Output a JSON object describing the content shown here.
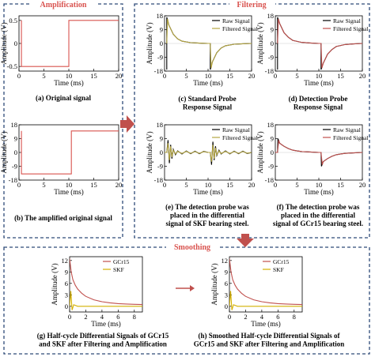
{
  "sections": {
    "amplification": "Amplification",
    "filtering": "Filtering",
    "smoothing": "Smoothing"
  },
  "colors": {
    "frame": "#2e4a78",
    "header": "#d9534f",
    "arrow": "#c0504d",
    "raw": "#000000",
    "filtered": "#b5a642",
    "gcr15": "#c0504d",
    "skf": "#d4b000",
    "original": "#d9534f"
  },
  "captions": {
    "a": [
      "(a) Original signal"
    ],
    "b": [
      "(b) The amplified original signal"
    ],
    "c": [
      "(c) Standard Probe",
      "Response Signal"
    ],
    "d": [
      "(d) Detection Probe",
      "Response Signal"
    ],
    "e": [
      "(e) The detection probe was",
      "placed in the differential",
      "signal of SKF bearing steel."
    ],
    "f": [
      "(f) The detection probe was",
      "placed in the differential",
      "signal of GCr15 bearing steel."
    ],
    "g": [
      "(g) Half-cycle Differential Signals of GCr15",
      "and SKF after Filtering and Amplification"
    ],
    "h": [
      "(h) Smoothed Half-cycle Differential Signals of",
      "GCr15 and SKF after Filtering and Amplification"
    ]
  },
  "chart_data": [
    {
      "id": "a",
      "type": "line",
      "xlabel": "Time (ms)",
      "ylabel": "Amplitude (V)",
      "xlim": [
        0,
        20
      ],
      "ylim": [
        -0.6,
        0.6
      ],
      "xticks": [
        0,
        5,
        10,
        15,
        20
      ],
      "yticks": [
        -0.5,
        0,
        0.5
      ],
      "series": [
        {
          "x": [
            0.5,
            0.5,
            10,
            10,
            20
          ],
          "y": [
            0.5,
            -0.5,
            -0.5,
            0.5,
            0.5
          ],
          "color": "#d9534f"
        }
      ]
    },
    {
      "id": "b",
      "type": "line",
      "xlabel": "Time (ms)",
      "ylabel": "Amplitude (V)",
      "xlim": [
        0,
        20
      ],
      "ylim": [
        -18,
        18
      ],
      "xticks": [
        0,
        5,
        10,
        15,
        20
      ],
      "yticks": [
        -18,
        -9,
        0,
        9,
        18
      ],
      "series": [
        {
          "x": [
            0.5,
            0.5,
            10.5,
            10.5,
            20
          ],
          "y": [
            14,
            -14,
            -14,
            14,
            14
          ],
          "color": "#d9534f"
        }
      ]
    },
    {
      "id": "c",
      "type": "line",
      "xlabel": "Time (ms)",
      "ylabel": "Amplitude (V)",
      "xlim": [
        0,
        20
      ],
      "ylim": [
        -18,
        18
      ],
      "xticks": [
        0,
        5,
        10,
        15,
        20
      ],
      "yticks": [
        -18,
        -9,
        0,
        9,
        18
      ],
      "legend": [
        "Raw Signal",
        "Filtered Signal"
      ],
      "legend_pos": "top-right",
      "series": [
        {
          "name": "Raw Signal",
          "color": "#000000",
          "x": [
            0.5,
            0.5,
            1,
            2,
            3,
            4,
            6,
            8,
            10,
            10.5,
            10.5,
            11,
            12,
            13,
            14,
            16,
            18,
            20
          ],
          "y": [
            -17,
            17,
            12,
            6,
            3,
            1.5,
            0.5,
            0.2,
            0,
            0,
            -17,
            -12,
            -6,
            -3,
            -1.5,
            -0.5,
            -0.2,
            0
          ]
        },
        {
          "name": "Filtered Signal",
          "color": "#b5a642",
          "x": [
            0.5,
            0.7,
            1,
            2,
            3,
            4,
            6,
            8,
            10,
            10.5,
            10.7,
            11,
            12,
            13,
            14,
            16,
            18,
            20
          ],
          "y": [
            0,
            16,
            12,
            6,
            3,
            1.5,
            0.5,
            0.2,
            0,
            0,
            -16,
            -12,
            -6,
            -3,
            -1.5,
            -0.5,
            -0.2,
            0
          ]
        }
      ]
    },
    {
      "id": "d",
      "type": "line",
      "xlabel": "Time (ms)",
      "ylabel": "Amplitude (V)",
      "xlim": [
        0,
        20
      ],
      "ylim": [
        -18,
        18
      ],
      "xticks": [
        0,
        5,
        10,
        15,
        20
      ],
      "yticks": [
        -18,
        -9,
        0,
        9,
        18
      ],
      "legend": [
        "Raw Signal",
        "Filtered Signal"
      ],
      "legend_pos": "top-right",
      "series": [
        {
          "name": "Raw Signal",
          "color": "#000000",
          "x": [
            0.5,
            0.5,
            1,
            2,
            3,
            4,
            6,
            8,
            10,
            10.5,
            10.5,
            11,
            12,
            13,
            14,
            16,
            18,
            20
          ],
          "y": [
            -17,
            17,
            13,
            7,
            4,
            2,
            0.7,
            0.3,
            0,
            0,
            -17,
            -13,
            -7,
            -4,
            -2,
            -0.7,
            -0.3,
            0
          ]
        },
        {
          "name": "Filtered Signal",
          "color": "#c0504d",
          "x": [
            0.5,
            0.7,
            1,
            2,
            3,
            4,
            6,
            8,
            10,
            10.5,
            10.7,
            11,
            12,
            13,
            14,
            16,
            18,
            20
          ],
          "y": [
            0,
            16,
            13,
            7,
            4,
            2,
            0.7,
            0.3,
            0,
            0,
            -16,
            -13,
            -7,
            -4,
            -2,
            -0.7,
            -0.3,
            0
          ]
        }
      ]
    },
    {
      "id": "e",
      "type": "line",
      "xlabel": "Time (ms)",
      "ylabel": "Amplitude (V)",
      "xlim": [
        0,
        20
      ],
      "ylim": [
        -18,
        18
      ],
      "xticks": [
        0,
        5,
        10,
        15,
        20
      ],
      "yticks": [
        -18,
        -9,
        0,
        9,
        18
      ],
      "legend": [
        "Raw Signal",
        "Filtered Signal"
      ],
      "legend_pos": "top-right",
      "series": [
        {
          "name": "Raw Signal",
          "color": "#000000",
          "x": [
            0,
            0.5,
            0.8,
            1.1,
            1.4,
            1.7,
            2,
            2.5,
            3,
            4,
            5,
            6,
            7,
            8,
            9,
            10,
            10.5,
            10.8,
            11.1,
            11.4,
            11.7,
            12,
            12.5,
            13,
            14,
            15,
            16,
            17,
            18,
            19,
            20
          ],
          "y": [
            0,
            0,
            8,
            -7,
            5,
            -4,
            2,
            -1.5,
            1,
            -1,
            1,
            -0.8,
            0.8,
            -0.8,
            0.7,
            0,
            0,
            -8,
            7,
            -5,
            4,
            -2,
            1.5,
            -1,
            1,
            -1,
            0.8,
            -0.8,
            0.8,
            -0.7,
            0
          ]
        },
        {
          "name": "Filtered Signal",
          "color": "#b5a642",
          "x": [
            0,
            0.5,
            0.8,
            1.1,
            1.4,
            1.7,
            2,
            2.5,
            3,
            4,
            5,
            6,
            7,
            8,
            9,
            10,
            10.5,
            10.8,
            11.1,
            11.4,
            11.7,
            12,
            12.5,
            13,
            14,
            15,
            16,
            17,
            18,
            19,
            20
          ],
          "y": [
            0,
            0,
            6,
            -5,
            4,
            -3,
            1.5,
            -1,
            0.7,
            -0.7,
            0.7,
            -0.6,
            0.6,
            -0.6,
            0.5,
            0,
            0,
            -6,
            5,
            -4,
            3,
            -1.5,
            1,
            -0.7,
            0.7,
            -0.7,
            0.6,
            -0.6,
            0.6,
            -0.5,
            0
          ]
        }
      ]
    },
    {
      "id": "f",
      "type": "line",
      "xlabel": "Time (ms)",
      "ylabel": "Amplitude (V)",
      "xlim": [
        0,
        20
      ],
      "ylim": [
        -18,
        18
      ],
      "xticks": [
        0,
        5,
        10,
        15,
        20
      ],
      "yticks": [
        -18,
        -9,
        0,
        9,
        18
      ],
      "legend": [
        "Raw Signal",
        "Filtered Signal"
      ],
      "legend_pos": "top-right",
      "series": [
        {
          "name": "Raw Signal",
          "color": "#000000",
          "x": [
            0,
            0.5,
            0.6,
            1,
            1.5,
            2,
            3,
            4,
            5,
            6,
            8,
            10,
            10.5,
            10.6,
            11,
            11.5,
            12,
            13,
            14,
            15,
            16,
            18,
            20
          ],
          "y": [
            0,
            0,
            9,
            6,
            5,
            4,
            2.5,
            1.5,
            1,
            0.6,
            0.3,
            0,
            0,
            -9,
            -6,
            -5,
            -4,
            -2.5,
            -1.5,
            -1,
            -0.6,
            -0.3,
            0
          ]
        },
        {
          "name": "Filtered Signal",
          "color": "#c0504d",
          "x": [
            0,
            0.5,
            0.8,
            1,
            1.5,
            2,
            3,
            4,
            5,
            6,
            8,
            10,
            10.5,
            10.8,
            11,
            11.5,
            12,
            13,
            14,
            15,
            16,
            18,
            20
          ],
          "y": [
            0,
            0,
            8,
            6,
            5,
            4,
            2.5,
            1.5,
            1,
            0.6,
            0.3,
            0,
            0,
            -8,
            -6,
            -5,
            -4,
            -2.5,
            -1.5,
            -1,
            -0.6,
            -0.3,
            0
          ]
        }
      ]
    },
    {
      "id": "g",
      "type": "line",
      "xlabel": "Time (ms)",
      "ylabel": "Amplitude (V)",
      "xlim": [
        0,
        9
      ],
      "ylim": [
        -1.5,
        13
      ],
      "xticks": [
        0,
        2,
        4,
        6,
        8
      ],
      "yticks": [
        0,
        3,
        6,
        9,
        12
      ],
      "legend": [
        "GCr15",
        "SKF"
      ],
      "legend_pos": "top-right",
      "series": [
        {
          "name": "GCr15",
          "color": "#c0504d",
          "x": [
            0,
            0.2,
            0.4,
            0.7,
            1,
            1.5,
            2,
            3,
            4,
            5,
            6,
            7,
            8,
            9
          ],
          "y": [
            12.5,
            9,
            7,
            5.5,
            4.5,
            3.4,
            2.6,
            1.7,
            1.2,
            0.9,
            0.7,
            0.6,
            0.5,
            0.45
          ]
        },
        {
          "name": "SKF",
          "color": "#d4b000",
          "x": [
            0,
            0.15,
            0.3,
            0.5,
            1,
            2,
            3,
            4,
            5,
            6,
            7,
            8,
            9
          ],
          "y": [
            0,
            4,
            -1,
            0.4,
            0,
            0,
            0,
            0,
            0,
            0,
            0,
            0,
            0
          ]
        }
      ]
    },
    {
      "id": "h",
      "type": "line",
      "xlabel": "Time (ms)",
      "ylabel": "Amplitude (V)",
      "xlim": [
        0,
        9
      ],
      "ylim": [
        -1.5,
        13
      ],
      "xticks": [
        0,
        2,
        4,
        6,
        8
      ],
      "yticks": [
        0,
        3,
        6,
        9,
        12
      ],
      "legend": [
        "GCr15",
        "SKF"
      ],
      "legend_pos": "top-right",
      "series": [
        {
          "name": "GCr15",
          "color": "#c0504d",
          "x": [
            0,
            0.2,
            0.4,
            0.7,
            1,
            1.5,
            2,
            3,
            4,
            5,
            6,
            7,
            8,
            9
          ],
          "y": [
            12.5,
            9,
            7,
            5.5,
            4.5,
            3.4,
            2.6,
            1.7,
            1.2,
            0.9,
            0.7,
            0.6,
            0.5,
            0.45
          ]
        },
        {
          "name": "SKF",
          "color": "#d4b000",
          "x": [
            0,
            0.15,
            0.3,
            0.5,
            1,
            2,
            3,
            4,
            5,
            6,
            7,
            8,
            9
          ],
          "y": [
            0,
            4,
            -1,
            0.4,
            0,
            0,
            0,
            0,
            0,
            0,
            0,
            0,
            0
          ]
        }
      ]
    }
  ]
}
